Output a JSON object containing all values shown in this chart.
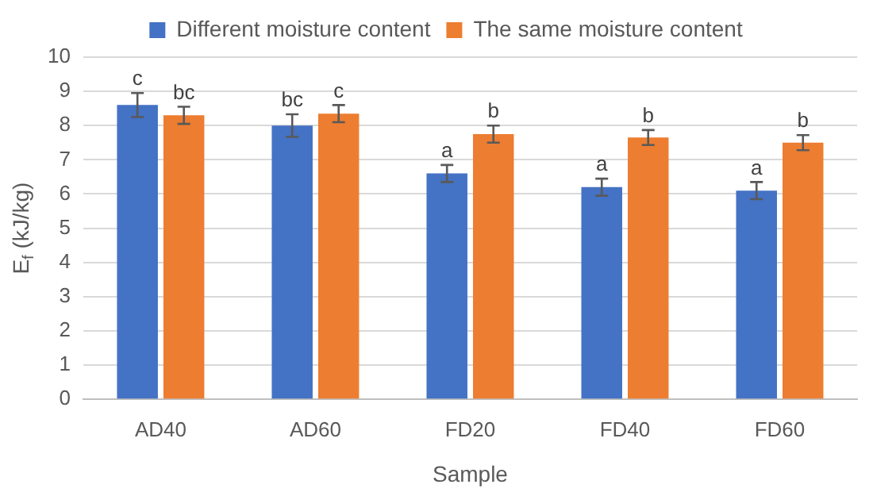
{
  "chart_data": {
    "type": "bar",
    "xlabel": "Sample",
    "ylabel": "E$_{f}$ (kJ/kg)",
    "categories": [
      "AD40",
      "AD60",
      "FD20",
      "FD40",
      "FD60"
    ],
    "series": [
      {
        "name": "Different moisture content",
        "color": "#4472c4",
        "values": [
          8.6,
          8.0,
          6.6,
          6.2,
          6.1
        ],
        "errors": [
          0.35,
          0.33,
          0.25,
          0.25,
          0.25
        ],
        "value_labels": [
          "c",
          "bc",
          "a",
          "a",
          "a"
        ]
      },
      {
        "name": "The same moisture content",
        "color": "#ed7d31",
        "values": [
          8.3,
          8.35,
          7.75,
          7.65,
          7.5
        ],
        "errors": [
          0.25,
          0.25,
          0.25,
          0.22,
          0.22
        ],
        "value_labels": [
          "bc",
          "c",
          "b",
          "b",
          "b"
        ]
      }
    ],
    "ylim": [
      0,
      10
    ],
    "yticks": [
      0,
      1,
      2,
      3,
      4,
      5,
      6,
      7,
      8,
      9,
      10
    ],
    "grid": "y",
    "legend": "top"
  }
}
